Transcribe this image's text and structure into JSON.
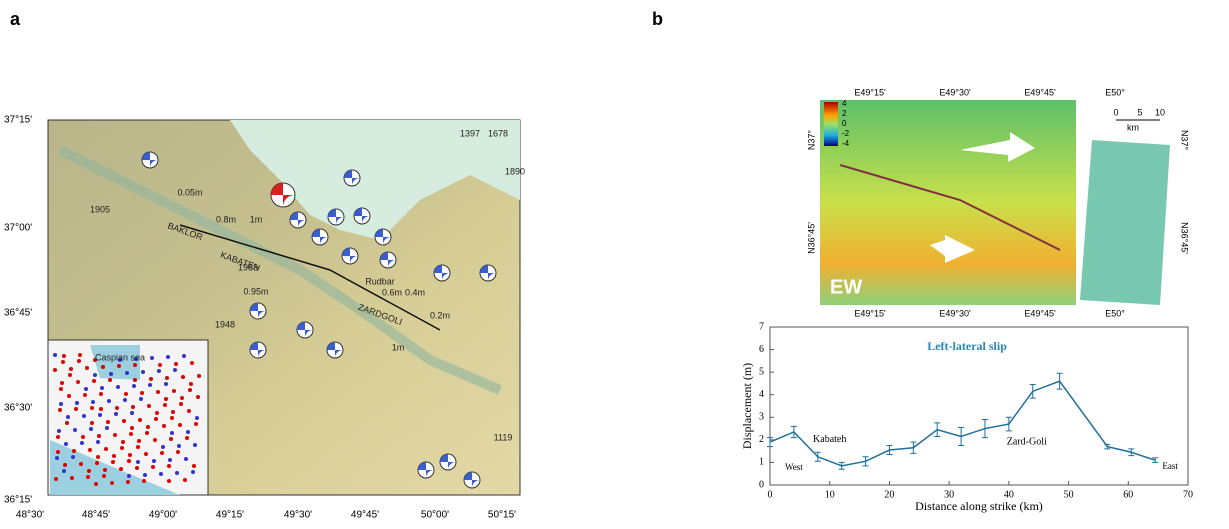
{
  "panels": {
    "a": "a",
    "b": "b"
  },
  "map": {
    "lat_labels": [
      "37°15'",
      "37°00'",
      "36°45'",
      "36°30'",
      "36°15'"
    ],
    "lon_labels": [
      "48°30'",
      "48°45'",
      "49°00'",
      "49°15'",
      "49°30'",
      "49°45'",
      "50°00'",
      "50°15'"
    ],
    "annotations": [
      "BAKLOR",
      "KABATEH",
      "ZARDGOLI",
      "Rudbar",
      "0.05m",
      "0.8m",
      "1m",
      "0.95m",
      "0.6m",
      "0.4m",
      "0.2m",
      "1m",
      "1397",
      "1678",
      "1890",
      "1905",
      "1983",
      "1948",
      "1119",
      "Caspian sea"
    ]
  },
  "insar": {
    "top_labels": [
      "E49°15'",
      "E49°30'",
      "E49°45'",
      "E50°"
    ],
    "bottom_labels": [
      "E49°15'",
      "E49°30'",
      "E49°45'",
      "E50°"
    ],
    "left_labels": [
      "N37°",
      "N36°45'"
    ],
    "right_labels": [
      "N37°",
      "N36°45'"
    ],
    "colorbar": [
      "4",
      "2",
      "0",
      "-2",
      "-4"
    ],
    "scale": [
      "0",
      "5",
      "10",
      "km"
    ],
    "component": "EW"
  },
  "chart_data": {
    "type": "line",
    "title": "Left-lateral slip",
    "x_label": "Distance along strike (km)",
    "y_label": "Displacement (m)",
    "x": [
      0,
      4,
      8,
      12,
      16,
      20,
      24,
      28,
      32,
      36,
      40,
      44,
      48.5,
      56.5,
      60.5,
      64.5
    ],
    "series": [
      {
        "name": "Left-lateral slip",
        "color": "#1f6f9a",
        "values": [
          1.9,
          2.35,
          1.25,
          0.85,
          1.05,
          1.55,
          1.65,
          2.45,
          2.15,
          2.5,
          2.7,
          4.15,
          4.6,
          1.7,
          1.45,
          1.1
        ],
        "errors": [
          0.2,
          0.25,
          0.2,
          0.15,
          0.2,
          0.2,
          0.25,
          0.3,
          0.4,
          0.4,
          0.3,
          0.3,
          0.35,
          0.1,
          0.15,
          0.1
        ]
      }
    ],
    "annotations": [
      "Kabateh",
      "West",
      "Zard-Goli",
      "East"
    ],
    "xlim": [
      0,
      70
    ],
    "ylim": [
      0,
      7
    ],
    "xticks": [
      0,
      10,
      20,
      30,
      40,
      50,
      60,
      70
    ],
    "yticks": [
      0,
      1,
      2,
      3,
      4,
      5,
      6,
      7
    ]
  }
}
